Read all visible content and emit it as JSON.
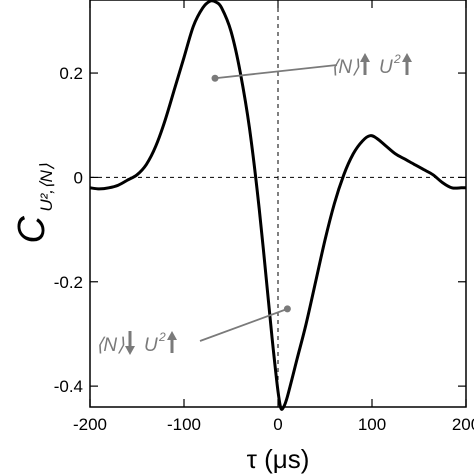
{
  "chart_data": {
    "type": "line",
    "xlabel": "τ (μs)",
    "ylabel": {
      "main": "C",
      "sub": "U²,⟨N⟩"
    },
    "xlim": [
      -200,
      200
    ],
    "ylim": [
      -0.44,
      0.34
    ],
    "xticks": [
      {
        "value": -200,
        "label": "-200"
      },
      {
        "value": -100,
        "label": "-100"
      },
      {
        "value": 0,
        "label": "0"
      },
      {
        "value": 100,
        "label": "100"
      },
      {
        "value": 200,
        "label": "200"
      }
    ],
    "yticks": [
      {
        "value": 0.2,
        "label": "0.2"
      },
      {
        "value": 0,
        "label": "0"
      },
      {
        "value": -0.2,
        "label": "-0.2"
      },
      {
        "value": -0.4,
        "label": "-0.4"
      }
    ],
    "reference_lines": {
      "x": 0,
      "y": 0
    },
    "grid": false,
    "series": [
      {
        "color": "#000000",
        "x": [
          -200,
          -190,
          -180,
          -170,
          -160,
          -150,
          -140,
          -130,
          -120,
          -110,
          -100,
          -90,
          -80,
          -72,
          -66,
          -60,
          -50,
          -40,
          -30,
          -20,
          -10,
          -5,
          0,
          3,
          6,
          10,
          20,
          30,
          40,
          50,
          60,
          70,
          80,
          90,
          98,
          105,
          115,
          125,
          135,
          145,
          155,
          165,
          175,
          185,
          195,
          200
        ],
        "y": [
          -0.02,
          -0.022,
          -0.02,
          -0.015,
          -0.005,
          0.005,
          0.025,
          0.06,
          0.11,
          0.17,
          0.23,
          0.29,
          0.325,
          0.338,
          0.336,
          0.325,
          0.28,
          0.2,
          0.09,
          -0.06,
          -0.24,
          -0.33,
          -0.41,
          -0.442,
          -0.44,
          -0.42,
          -0.35,
          -0.28,
          -0.2,
          -0.12,
          -0.05,
          0.005,
          0.045,
          0.07,
          0.08,
          0.075,
          0.06,
          0.045,
          0.035,
          0.025,
          0.015,
          0.005,
          -0.01,
          -0.02,
          -0.02,
          -0.02
        ]
      }
    ],
    "annotations": [
      {
        "prefix": "⟨N⟩",
        "arrow1": "up",
        "main": "U",
        "sup": "2",
        "arrow2": "up",
        "point": {
          "x": -67,
          "y": 0.19
        }
      },
      {
        "prefix": "⟨N⟩",
        "arrow1": "down",
        "main": "U",
        "sup": "2",
        "arrow2": "up",
        "point": {
          "x": 10,
          "y": -0.252
        }
      }
    ],
    "annotation_color": "#7a7a7a"
  }
}
